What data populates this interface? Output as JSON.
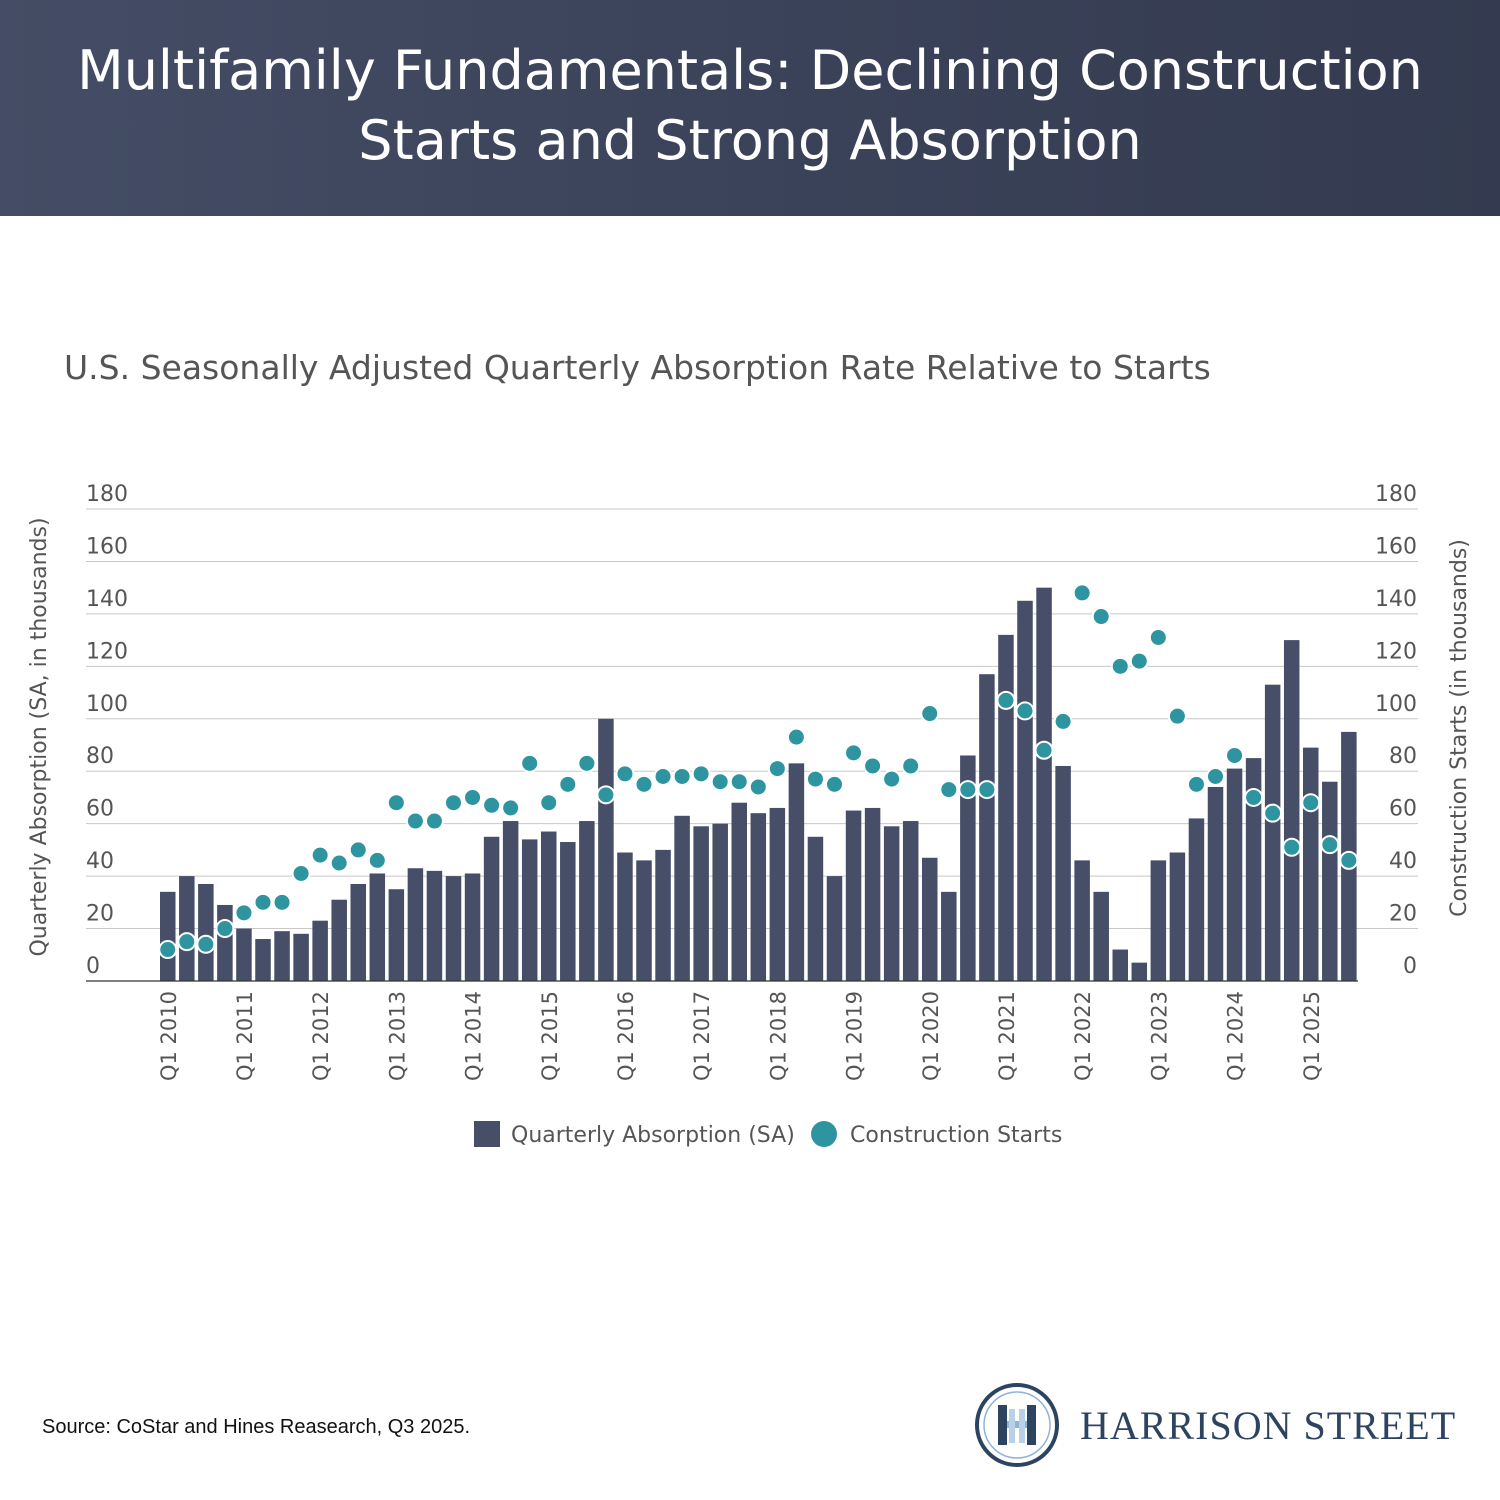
{
  "banner": {
    "title_line1": "Multifamily Fundamentals: Declining Construction",
    "title_line2": "Starts and Strong Absorption"
  },
  "chart_data": {
    "type": "bar",
    "title": "U.S. Seasonally Adjusted Quarterly Absorption Rate Relative to Starts",
    "ylabel_left": "Quarterly Absorption (SA, in thousands)",
    "ylabel_right": "Construction Starts (in thousands)",
    "ylim": [
      0,
      180
    ],
    "yticks": [
      0,
      20,
      40,
      60,
      80,
      100,
      120,
      140,
      160,
      180
    ],
    "grid": true,
    "legend_position": "bottom-center",
    "x_tick_labels": [
      "Q1 2010",
      "Q1 2011",
      "Q1 2012",
      "Q1 2013",
      "Q1 2014",
      "Q1 2015",
      "Q1 2016",
      "Q1 2017",
      "Q1 2018",
      "Q1 2019",
      "Q1 2020",
      "Q1 2021",
      "Q1 2022",
      "Q1 2023",
      "Q1 2024",
      "Q1 2025"
    ],
    "categories": [
      "Q1 2010",
      "Q2 2010",
      "Q3 2010",
      "Q4 2010",
      "Q1 2011",
      "Q2 2011",
      "Q3 2011",
      "Q4 2011",
      "Q1 2012",
      "Q2 2012",
      "Q3 2012",
      "Q4 2012",
      "Q1 2013",
      "Q2 2013",
      "Q3 2013",
      "Q4 2013",
      "Q1 2014",
      "Q2 2014",
      "Q3 2014",
      "Q4 2014",
      "Q1 2015",
      "Q2 2015",
      "Q3 2015",
      "Q4 2015",
      "Q1 2016",
      "Q2 2016",
      "Q3 2016",
      "Q4 2016",
      "Q1 2017",
      "Q2 2017",
      "Q3 2017",
      "Q4 2017",
      "Q1 2018",
      "Q2 2018",
      "Q3 2018",
      "Q4 2018",
      "Q1 2019",
      "Q2 2019",
      "Q3 2019",
      "Q4 2019",
      "Q1 2020",
      "Q2 2020",
      "Q3 2020",
      "Q4 2020",
      "Q1 2021",
      "Q2 2021",
      "Q3 2021",
      "Q4 2021",
      "Q1 2022",
      "Q2 2022",
      "Q3 2022",
      "Q4 2022",
      "Q1 2023",
      "Q2 2023",
      "Q3 2023",
      "Q4 2023",
      "Q1 2024",
      "Q2 2024",
      "Q3 2024",
      "Q4 2024",
      "Q1 2025",
      "Q2 2025",
      "Q3 2025"
    ],
    "series": [
      {
        "name": "Quarterly Absorption (SA)",
        "type": "bar",
        "color": "#464e68",
        "values": [
          34,
          40,
          37,
          29,
          20,
          16,
          19,
          18,
          23,
          31,
          37,
          41,
          35,
          43,
          42,
          40,
          41,
          55,
          61,
          54,
          57,
          53,
          61,
          100,
          49,
          46,
          50,
          63,
          59,
          60,
          68,
          64,
          66,
          83,
          55,
          40,
          65,
          66,
          59,
          61,
          47,
          34,
          86,
          117,
          132,
          145,
          150,
          82,
          46,
          34,
          12,
          7,
          46,
          49,
          62,
          74,
          81,
          85,
          113,
          130,
          89,
          76,
          95
        ]
      },
      {
        "name": "Construction Starts",
        "type": "scatter",
        "color": "#2e95a0",
        "values": [
          12,
          15,
          14,
          20,
          26,
          30,
          30,
          41,
          48,
          45,
          50,
          46,
          68,
          61,
          61,
          68,
          70,
          67,
          66,
          83,
          68,
          75,
          83,
          71,
          79,
          75,
          78,
          78,
          79,
          76,
          76,
          74,
          81,
          93,
          77,
          75,
          87,
          82,
          77,
          82,
          102,
          73,
          73,
          73,
          107,
          103,
          88,
          99,
          148,
          139,
          120,
          122,
          131,
          101,
          75,
          78,
          86,
          70,
          64,
          51,
          68,
          52,
          46
        ]
      }
    ]
  },
  "footer": {
    "source": "Source: CoStar and Hines Reasearch, Q3 2025.",
    "logo_text": "HARRISON STREET"
  },
  "colors": {
    "banner": "#3f475e",
    "bar": "#464e68",
    "dot": "#2e95a0",
    "logo": "#2d4460"
  }
}
